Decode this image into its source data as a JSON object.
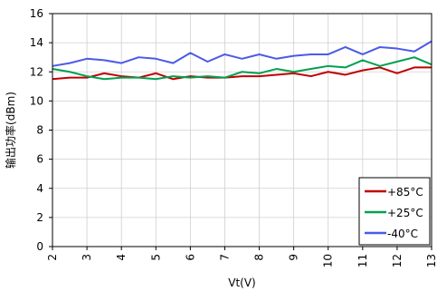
{
  "chart_data": {
    "type": "line",
    "title": "",
    "xlabel": "Vt(V)",
    "ylabel": "输出功率(dBm)",
    "xlim": [
      2,
      13
    ],
    "ylim": [
      0,
      16
    ],
    "x_ticks": [
      "2",
      "3",
      "4",
      "5",
      "6",
      "7",
      "8",
      "9",
      "10",
      "11",
      "12",
      "13"
    ],
    "y_ticks": [
      "0",
      "2",
      "4",
      "6",
      "8",
      "10",
      "12",
      "14",
      "16"
    ],
    "grid": true,
    "legend_position": "bottom-right",
    "x": [
      2,
      2.5,
      3,
      3.5,
      4,
      4.5,
      5,
      5.5,
      6,
      6.5,
      7,
      7.5,
      8,
      8.5,
      9,
      9.5,
      10,
      10.5,
      11,
      11.5,
      12,
      12.5,
      13
    ],
    "series": [
      {
        "name": "+85°C",
        "color": "#c00000",
        "values": [
          11.5,
          11.6,
          11.6,
          11.9,
          11.7,
          11.6,
          11.9,
          11.5,
          11.7,
          11.6,
          11.6,
          11.7,
          11.7,
          11.8,
          11.9,
          11.7,
          12.0,
          11.8,
          12.1,
          12.3,
          11.9,
          12.3,
          12.3
        ]
      },
      {
        "name": "+25°C",
        "color": "#00a050",
        "values": [
          12.2,
          12.0,
          11.7,
          11.5,
          11.6,
          11.6,
          11.5,
          11.7,
          11.6,
          11.7,
          11.6,
          12.0,
          11.9,
          12.2,
          12.0,
          12.2,
          12.4,
          12.3,
          12.8,
          12.4,
          12.7,
          13.0,
          12.5
        ]
      },
      {
        "name": "-40°C",
        "color": "#4a5ae8",
        "values": [
          12.4,
          12.6,
          12.9,
          12.8,
          12.6,
          13.0,
          12.9,
          12.6,
          13.3,
          12.7,
          13.2,
          12.9,
          13.2,
          12.9,
          13.1,
          13.2,
          13.2,
          13.7,
          13.2,
          13.7,
          13.6,
          13.4,
          14.1
        ]
      }
    ]
  }
}
